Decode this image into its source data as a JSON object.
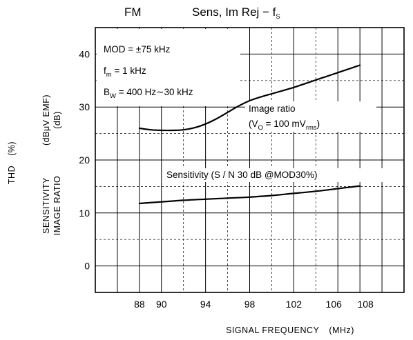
{
  "chart_data": {
    "type": "line",
    "title_left": "FM",
    "title_main": "Sens, Im Rej − f",
    "title_sub": "S",
    "xlabel": "SIGNAL FREQUENCY",
    "xlabel_unit": "(MHz)",
    "ylabel_left": "THD",
    "ylabel_left_unit": "(%)",
    "ylabel_1": "SENSITIVITY",
    "ylabel_2": "IMAGE RATIO",
    "ylabel_unit_1": "(dBμV EMF)",
    "ylabel_unit_2": "(dB)",
    "xlim": [
      84,
      112
    ],
    "ylim": [
      -5,
      45
    ],
    "x_ticks": [
      88,
      90,
      94,
      98,
      102,
      106,
      108
    ],
    "y_ticks": [
      0,
      10,
      20,
      30,
      40
    ],
    "grid": true,
    "conditions": {
      "mod_a": "MOD = ",
      "mod_b": "±",
      "mod_c": "75 kHz",
      "fm_a": "f",
      "fm_sub": "m",
      "fm_b": " = 1 kHz",
      "bw_a": "B",
      "bw_sub": "W",
      "bw_b": " = 400 Hz∼30 kHz"
    },
    "series": [
      {
        "name": "Image ratio",
        "annotation_2a": "(V",
        "annotation_2sub": "O",
        "annotation_2b": " = 100 mV",
        "annotation_2sub2": "rms",
        "annotation_2c": ")",
        "x": [
          88,
          89,
          90,
          91,
          92,
          93,
          94,
          95,
          96,
          97,
          98,
          99,
          100,
          101,
          102,
          103,
          104,
          105,
          106,
          107,
          108
        ],
        "y": [
          26.0,
          25.7,
          25.6,
          25.6,
          25.7,
          26.1,
          26.8,
          27.8,
          29.0,
          30.2,
          31.2,
          31.9,
          32.5,
          33.1,
          33.7,
          34.4,
          35.1,
          35.8,
          36.5,
          37.2,
          37.9
        ]
      },
      {
        "name": "Sensitivity",
        "annotation": "(S / N  30 dB @MOD30%)",
        "x": [
          88,
          90,
          92,
          94,
          96,
          98,
          100,
          102,
          104,
          106,
          108
        ],
        "y": [
          11.8,
          12.1,
          12.4,
          12.6,
          12.8,
          13.0,
          13.3,
          13.7,
          14.1,
          14.6,
          15.1
        ]
      }
    ]
  }
}
